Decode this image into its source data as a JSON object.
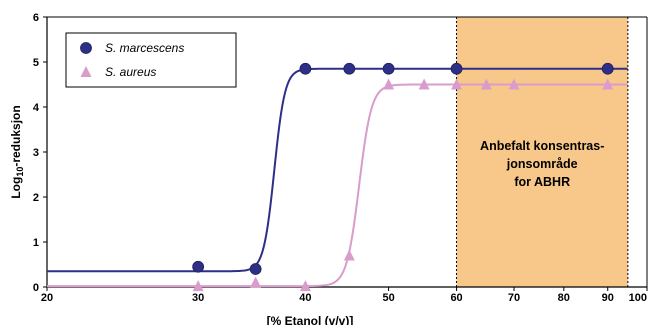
{
  "chart_data": {
    "type": "line",
    "xlabel": "[% Etanol (v/v)]",
    "ylabel_prefix": "Log",
    "ylabel_sub": "10",
    "ylabel_suffix": "-reduksjon",
    "x_scale": "log",
    "xlim": [
      20,
      100
    ],
    "ylim": [
      0,
      6
    ],
    "x_ticks": [
      20,
      30,
      40,
      50,
      60,
      70,
      80,
      90,
      100
    ],
    "y_ticks": [
      0,
      1,
      2,
      3,
      4,
      5,
      6
    ],
    "grid": false,
    "legend_placement": "top-left",
    "highlight_region": {
      "x_start": 60,
      "x_end": 95,
      "color": "#f8c88a",
      "label_lines": [
        "Anbefalt konsentras-",
        "jonsområde",
        "for ABHR"
      ]
    },
    "series": [
      {
        "name": "S. marcescens",
        "marker": "circle",
        "color": "#2e2f86",
        "points": [
          {
            "x": 30,
            "y": 0.45
          },
          {
            "x": 35,
            "y": 0.4
          },
          {
            "x": 40,
            "y": 4.85
          },
          {
            "x": 45,
            "y": 4.85
          },
          {
            "x": 50,
            "y": 4.85
          },
          {
            "x": 60,
            "y": 4.85
          },
          {
            "x": 90,
            "y": 4.85
          }
        ],
        "curve": {
          "low": 0.35,
          "high": 4.85,
          "mid": 36.8,
          "steepness": 70
        }
      },
      {
        "name": "S. aureus",
        "marker": "triangle",
        "color": "#d99ccb",
        "points": [
          {
            "x": 30,
            "y": 0.02
          },
          {
            "x": 35,
            "y": 0.1
          },
          {
            "x": 40,
            "y": 0.02
          },
          {
            "x": 45,
            "y": 0.7
          },
          {
            "x": 50,
            "y": 4.5
          },
          {
            "x": 55,
            "y": 4.5
          },
          {
            "x": 60,
            "y": 4.5
          },
          {
            "x": 65,
            "y": 4.5
          },
          {
            "x": 70,
            "y": 4.5
          },
          {
            "x": 90,
            "y": 4.5
          }
        ],
        "curve": {
          "low": 0.02,
          "high": 4.5,
          "mid": 46.2,
          "steepness": 60
        }
      }
    ]
  }
}
